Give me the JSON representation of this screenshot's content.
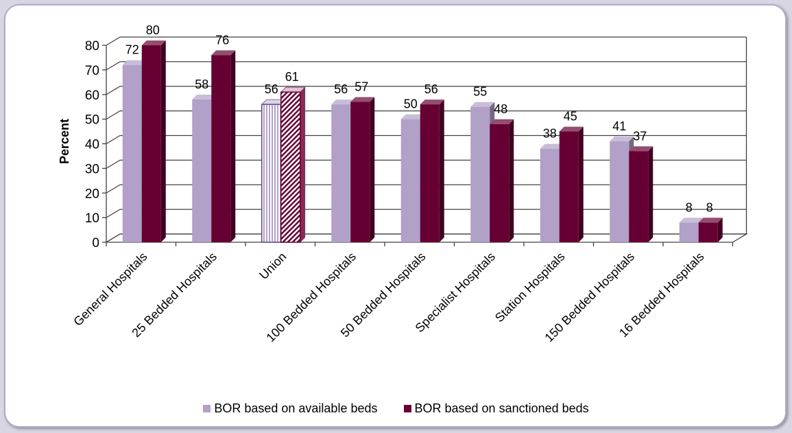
{
  "chart_data": {
    "type": "bar",
    "title": "",
    "xlabel": "",
    "ylabel": "Percent",
    "ylim": [
      0,
      80
    ],
    "yticks": [
      0,
      10,
      20,
      30,
      40,
      50,
      60,
      70,
      80
    ],
    "grid": true,
    "legend_position": "bottom",
    "categories": [
      "General Hospitals",
      "25 Bedded Hospitals",
      "Union",
      "100 Bedded Hospitals",
      "50 Bedded Hospitals",
      "Specialist Hospitals",
      "Station Hospitals",
      "150 Bedded Hospitals",
      "16 Bedded Hospitals"
    ],
    "series": [
      {
        "name": "BOR based on available beds",
        "color": "#b1a0c7",
        "values": [
          72,
          58,
          56,
          56,
          50,
          55,
          38,
          41,
          8
        ]
      },
      {
        "name": "BOR based on sanctioned beds",
        "color": "#660033",
        "values": [
          80,
          76,
          61,
          57,
          56,
          48,
          45,
          37,
          8
        ]
      }
    ],
    "highlighted_category": "Union"
  }
}
